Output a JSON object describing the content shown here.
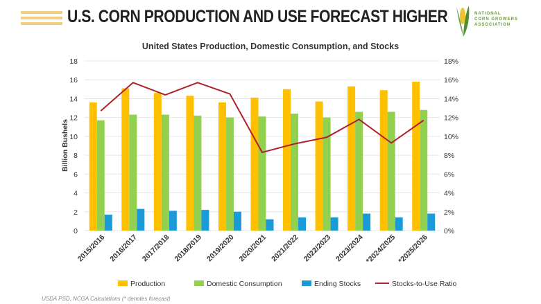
{
  "header": {
    "title": "U.S. CORN PRODUCTION AND USE FORECAST HIGHER",
    "logo_text": "NATIONAL CORN GROWERS ASSOCIATION"
  },
  "footer": {
    "source": "USDA PSD, NCGA Calculations (* denotes forecast)"
  },
  "colors": {
    "production": "#ffc000",
    "domestic": "#92d050",
    "stocks": "#1a9bd7",
    "ratio": "#b0202a"
  },
  "chart_data": {
    "type": "bar",
    "title": "United States Production, Domestic Consumption, and Stocks",
    "ylabel": "Billion Bushels",
    "ylim": [
      0,
      18
    ],
    "y2lim": [
      0,
      18
    ],
    "yticks": [
      "0",
      "2",
      "4",
      "6",
      "8",
      "10",
      "12",
      "14",
      "16",
      "18"
    ],
    "y2ticks": [
      "0%",
      "2%",
      "4%",
      "6%",
      "8%",
      "10%",
      "12%",
      "14%",
      "16%",
      "18%"
    ],
    "grid": true,
    "legend": "bottom",
    "categories": [
      "2015/2016",
      "2016/2017",
      "2017/2018",
      "2018/2019",
      "2019/2020",
      "2020/2021",
      "2021/2022",
      "2022/2023",
      "2023/2024",
      "*2024/2025",
      "*2025/2026"
    ],
    "series": [
      {
        "name": "Production",
        "type": "bar",
        "values": [
          13.6,
          15.1,
          14.6,
          14.3,
          13.6,
          14.1,
          15.0,
          13.7,
          15.3,
          14.9,
          15.8
        ]
      },
      {
        "name": "Domestic Consumption",
        "type": "bar",
        "values": [
          11.7,
          12.3,
          12.3,
          12.2,
          12.0,
          12.1,
          12.4,
          12.0,
          12.6,
          12.6,
          12.8
        ]
      },
      {
        "name": "Ending Stocks",
        "type": "bar",
        "values": [
          1.7,
          2.3,
          2.1,
          2.2,
          2.0,
          1.2,
          1.4,
          1.4,
          1.8,
          1.4,
          1.8
        ]
      },
      {
        "name": "Stocks-to-Use Ratio",
        "type": "line",
        "axis": "right",
        "values": [
          12.7,
          15.7,
          14.4,
          15.7,
          14.5,
          8.3,
          9.2,
          9.9,
          11.8,
          9.3,
          11.7
        ]
      }
    ]
  }
}
